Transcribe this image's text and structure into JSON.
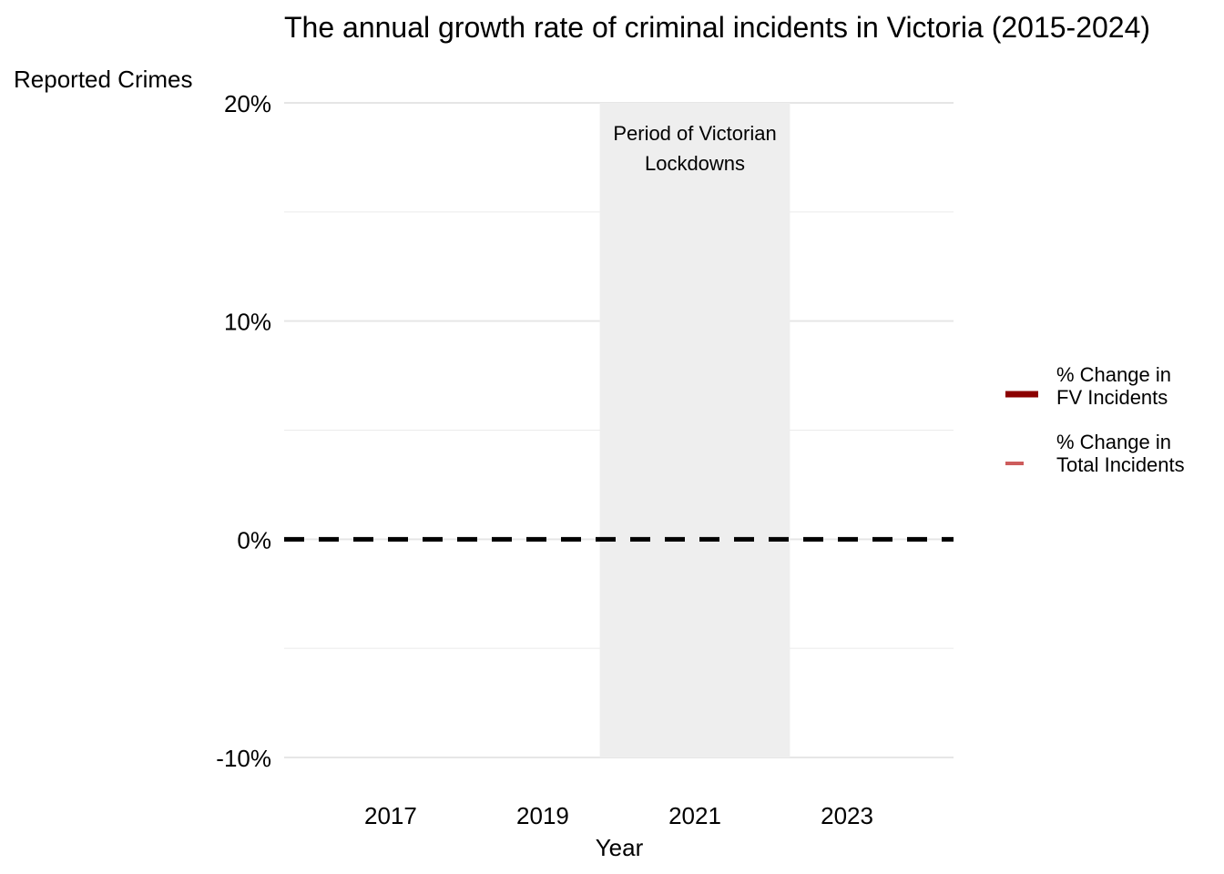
{
  "chart_data": {
    "type": "line",
    "title": "The annual growth rate of criminal incidents in Victoria (2015-2024)",
    "ylabel": "Reported Crimes",
    "xlabel": "Year",
    "xlim": [
      2015.6,
      2024.4
    ],
    "ylim": [
      -10,
      20
    ],
    "x_ticks": [
      2017,
      2019,
      2021,
      2023
    ],
    "y_ticks": [
      -10,
      0,
      10,
      20
    ],
    "y_tick_labels": [
      "-10%",
      "0%",
      "10%",
      "20%"
    ],
    "y_minor_gridlines": [
      -5,
      5,
      15
    ],
    "grid": true,
    "reference_line": {
      "y": 0,
      "style": "dashed",
      "color": "#000000"
    },
    "shaded_region": {
      "x_start": 2019.75,
      "x_end": 2022.25,
      "color": "#eeeeee",
      "label_lines": [
        "Period of Victorian",
        "Lockdowns"
      ]
    },
    "legend_position": "right",
    "series": [
      {
        "name_lines": [
          "% Change in",
          "FV Incidents"
        ],
        "color": "#8b0000",
        "values": []
      },
      {
        "name_lines": [
          "% Change in",
          "Total Incidents"
        ],
        "color": "#cd5c5c",
        "values": []
      }
    ]
  }
}
